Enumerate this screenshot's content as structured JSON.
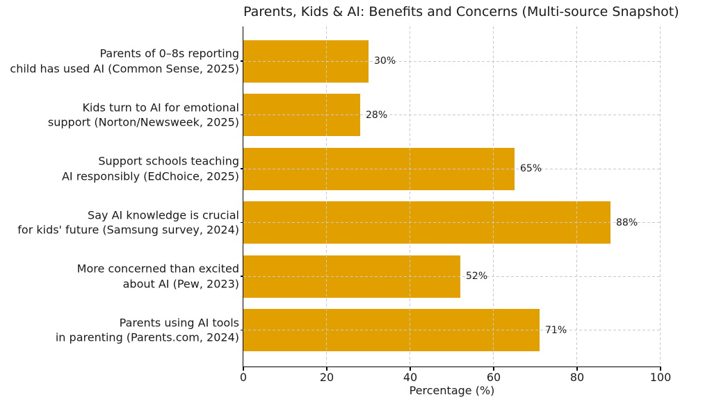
{
  "chart_data": {
    "type": "bar",
    "orientation": "horizontal",
    "title": "Parents, Kids & AI: Benefits and Concerns (Multi-source Snapshot)",
    "xlabel": "Percentage (%)",
    "ylabel": "",
    "xlim": [
      0,
      100
    ],
    "xticks": [
      0,
      20,
      40,
      60,
      80,
      100
    ],
    "grid": "dashed, both axes, light gray, drawn over bars",
    "legend_position": "none",
    "bar_color": "#E2A000",
    "categories": [
      "Parents of 0–8s reporting\nchild has used AI (Common Sense, 2025)",
      "Kids turn to AI for emotional\nsupport (Norton/Newsweek, 2025)",
      "Support schools teaching\nAI responsibly (EdChoice, 2025)",
      "Say AI knowledge is crucial\nfor kids' future (Samsung survey, 2024)",
      "More concerned than excited\nabout AI (Pew, 2023)",
      "Parents using AI tools\nin parenting (Parents.com, 2024)"
    ],
    "values": [
      30,
      28,
      65,
      88,
      52,
      71
    ],
    "value_labels": [
      "30%",
      "28%",
      "65%",
      "88%",
      "52%",
      "71%"
    ]
  }
}
